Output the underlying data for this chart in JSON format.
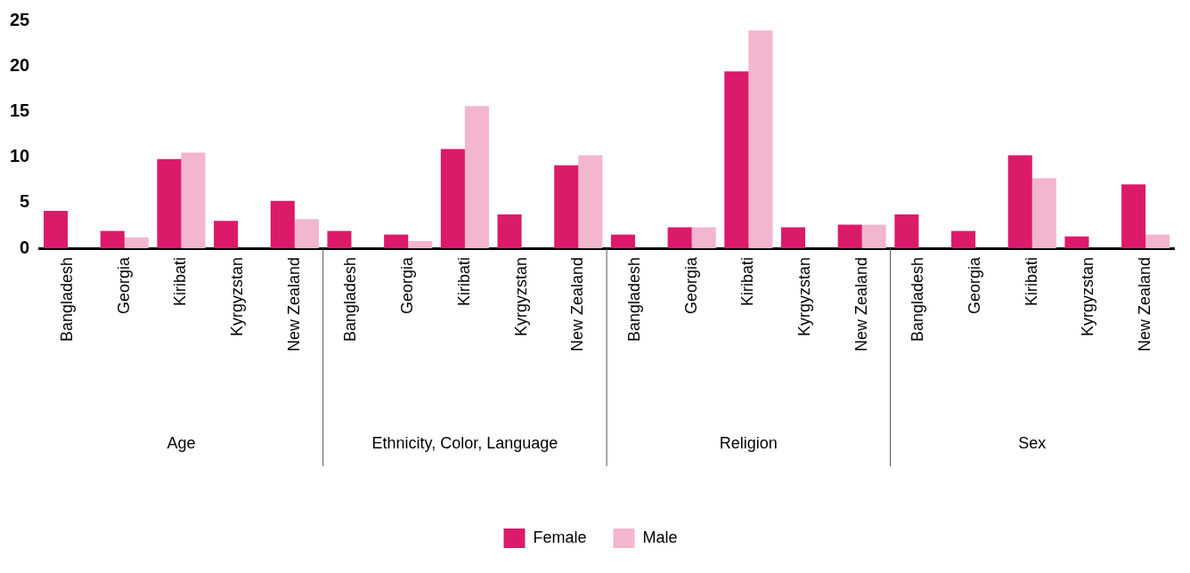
{
  "chart_data": {
    "type": "bar",
    "categories": [
      "Bangladesh",
      "Georgia",
      "Kiribati",
      "Kyrgyzstan",
      "New Zealand",
      "Bangladesh",
      "Georgia",
      "Kiribati",
      "Kyrgyzstan",
      "New Zealand",
      "Bangladesh",
      "Georgia",
      "Kiribati",
      "Kyrgyzstan",
      "New Zealand",
      "Bangladesh",
      "Georgia",
      "Kiribati",
      "Kyrgyzstan",
      "New Zealand"
    ],
    "series": [
      {
        "name": "Female",
        "color": "#dc1a6a",
        "values": [
          4.1,
          1.9,
          9.8,
          3.0,
          5.2,
          1.9,
          1.5,
          10.9,
          3.7,
          9.1,
          1.5,
          2.3,
          19.4,
          2.3,
          2.6,
          3.7,
          1.9,
          10.2,
          1.3,
          7.0
        ]
      },
      {
        "name": "Male",
        "color": "#f3b6cf",
        "values": [
          null,
          1.2,
          10.5,
          null,
          3.2,
          null,
          0.8,
          15.6,
          null,
          10.2,
          null,
          2.3,
          23.9,
          null,
          2.6,
          null,
          null,
          7.7,
          null,
          1.5
        ]
      }
    ],
    "annotations": [
      "Age",
      "Ethnicity, Color, Language",
      "Religion",
      "Sex"
    ],
    "ylim": [
      0,
      25
    ],
    "yticks": [
      0,
      5,
      10,
      15,
      20,
      25
    ],
    "grid": false,
    "legend": "bottom"
  }
}
